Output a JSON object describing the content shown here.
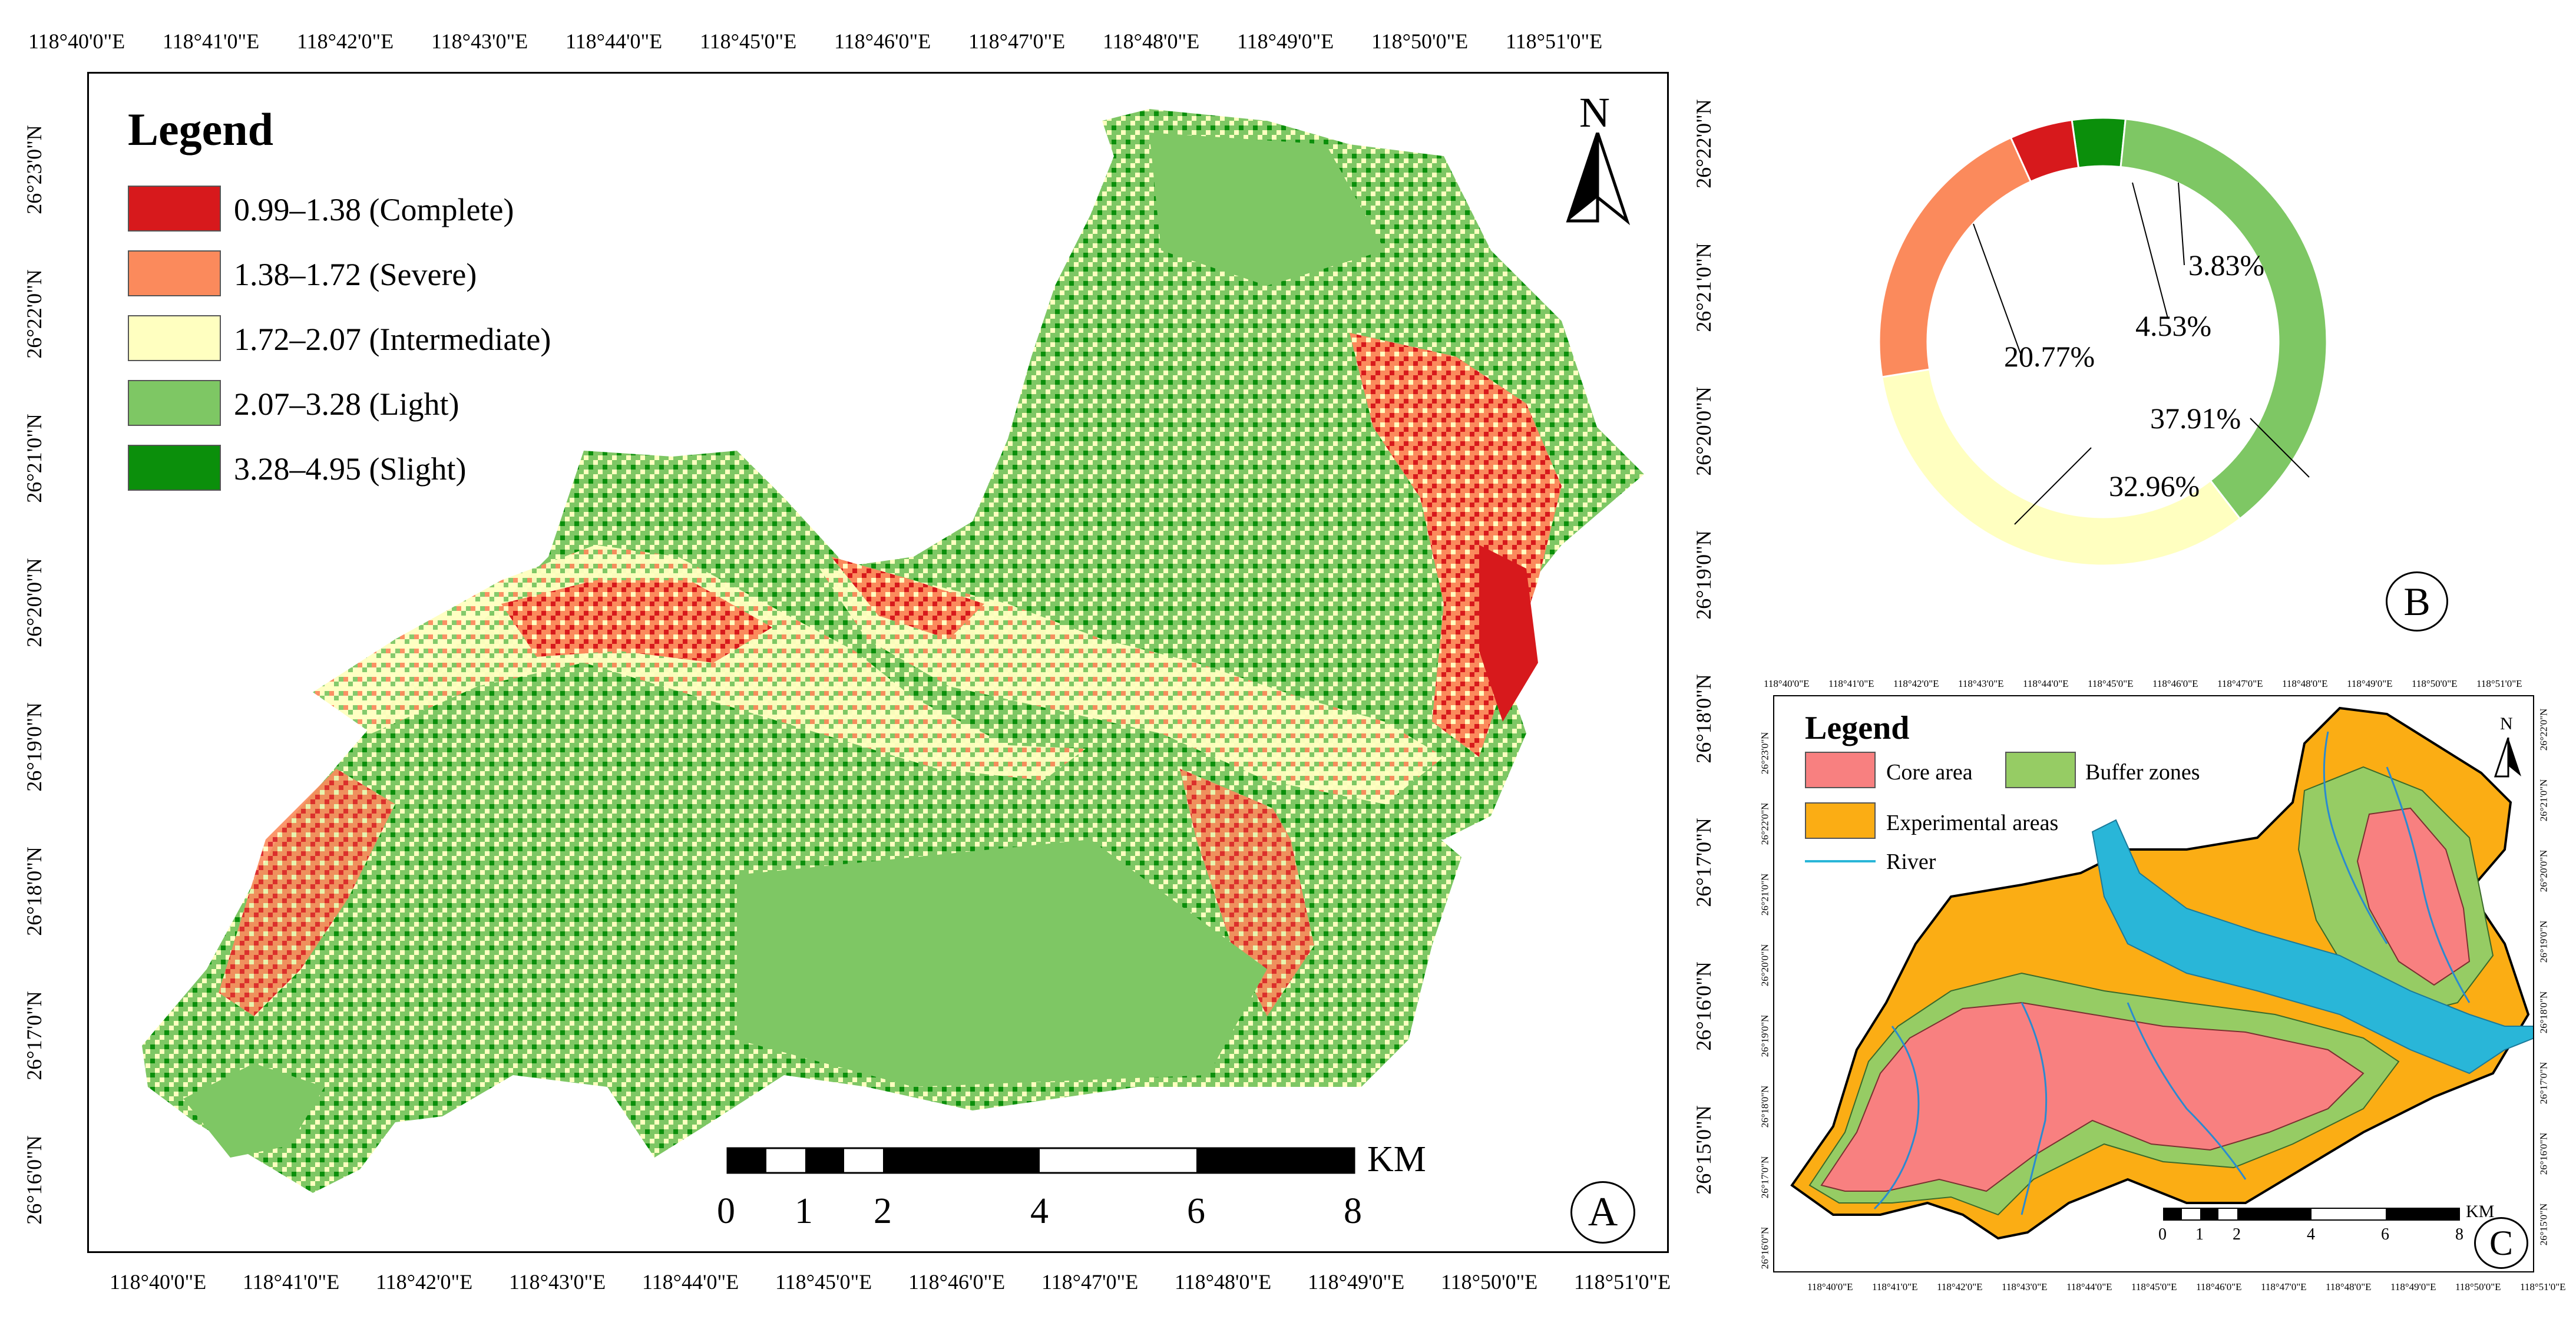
{
  "panel_a": {
    "label": "A",
    "legend_title": "Legend",
    "legend": [
      {
        "text": "0.99–1.38 (Complete)",
        "color": "#d7191c"
      },
      {
        "text": "1.38–1.72 (Severe)",
        "color": "#fb8a5c"
      },
      {
        "text": "1.72–2.07 (Intermediate)",
        "color": "#ffffc0"
      },
      {
        "text": "2.07–3.28 (Light)",
        "color": "#7ec764"
      },
      {
        "text": "3.28–4.95 (Slight)",
        "color": "#0b8f0b"
      }
    ],
    "north": "N",
    "scale_unit": "KM",
    "scale_ticks": [
      "0",
      "1",
      "2",
      "4",
      "6",
      "8"
    ],
    "lon_labels": [
      "118°40'0\"E",
      "118°41'0\"E",
      "118°42'0\"E",
      "118°43'0\"E",
      "118°44'0\"E",
      "118°45'0\"E",
      "118°46'0\"E",
      "118°47'0\"E",
      "118°48'0\"E",
      "118°49'0\"E",
      "118°50'0\"E",
      "118°51'0\"E"
    ],
    "lon_labels_bottom": [
      "118°40'0\"E",
      "118°41'0\"E",
      "118°42'0\"E",
      "118°43'0\"E",
      "118°44'0\"E",
      "118°45'0\"E",
      "118°46'0\"E",
      "118°47'0\"E",
      "118°48'0\"E",
      "118°49'0\"E",
      "118°50'0\"E",
      "118°51'0\"E"
    ],
    "lat_left": [
      "26°23'0\"N",
      "26°22'0\"N",
      "26°21'0\"N",
      "26°20'0\"N",
      "26°19'0\"N",
      "26°18'0\"N",
      "26°17'0\"N",
      "26°16'0\"N"
    ],
    "lat_right": [
      "26°22'0\"N",
      "26°21'0\"N",
      "26°20'0\"N",
      "26°19'0\"N",
      "26°18'0\"N",
      "26°17'0\"N",
      "26°16'0\"N",
      "26°15'0\"N"
    ]
  },
  "panel_b": {
    "label": "B",
    "chart_data": {
      "type": "pie",
      "slices": [
        {
          "label": "37.91%",
          "value": 37.91,
          "color": "#7ec764"
        },
        {
          "label": "32.96%",
          "value": 32.96,
          "color": "#ffffc0"
        },
        {
          "label": "20.77%",
          "value": 20.77,
          "color": "#fb8a5c"
        },
        {
          "label": "4.53%",
          "value": 4.53,
          "color": "#d7191c"
        },
        {
          "label": "3.83%",
          "value": 3.83,
          "color": "#0b8f0b"
        }
      ]
    }
  },
  "panel_c": {
    "label": "C",
    "legend_title": "Legend",
    "legend": [
      {
        "text": "Core area",
        "color": "#f88080"
      },
      {
        "text": "Buffer zones",
        "color": "#96cc64"
      },
      {
        "text": "Experimental areas",
        "color": "#fbad14"
      },
      {
        "text": "River",
        "color": "#29b6d8"
      }
    ],
    "north": "N",
    "scale_unit": "KM",
    "scale_ticks": [
      "0",
      "1",
      "2",
      "4",
      "6",
      "8"
    ],
    "lon_labels": [
      "118°40'0\"E",
      "118°41'0\"E",
      "118°42'0\"E",
      "118°43'0\"E",
      "118°44'0\"E",
      "118°45'0\"E",
      "118°46'0\"E",
      "118°47'0\"E",
      "118°48'0\"E",
      "118°49'0\"E",
      "118°50'0\"E",
      "118°51'0\"E"
    ],
    "lat_left": [
      "26°23'0\"N",
      "26°22'0\"N",
      "26°21'0\"N",
      "26°20'0\"N",
      "26°19'0\"N",
      "26°18'0\"N",
      "26°17'0\"N",
      "26°16'0\"N"
    ],
    "lat_right": [
      "26°22'0\"N",
      "26°21'0\"N",
      "26°20'0\"N",
      "26°19'0\"N",
      "26°18'0\"N",
      "26°17'0\"N",
      "26°16'0\"N",
      "26°15'0\"N"
    ]
  }
}
